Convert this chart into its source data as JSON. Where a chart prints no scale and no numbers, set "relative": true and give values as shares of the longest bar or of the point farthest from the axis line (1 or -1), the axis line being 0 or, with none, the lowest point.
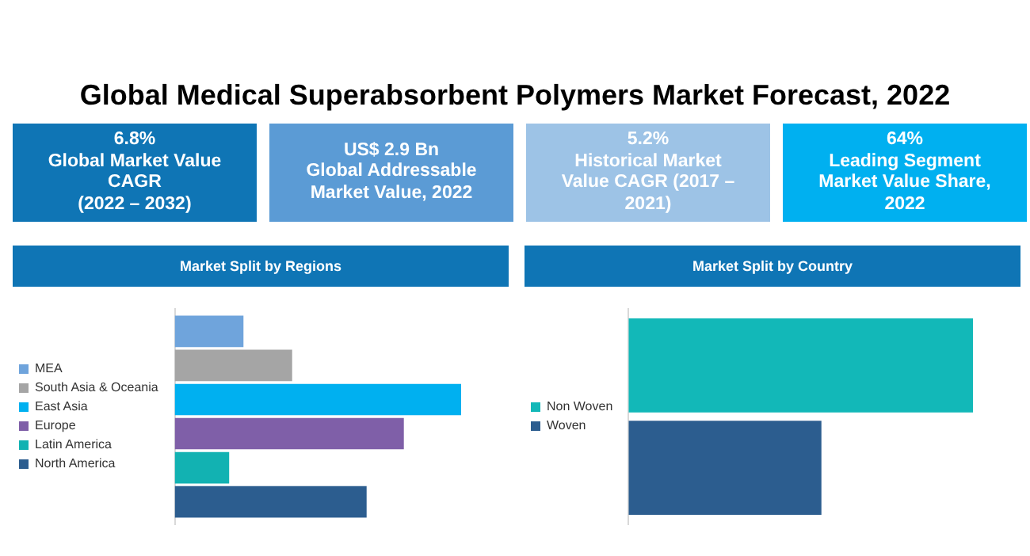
{
  "chart_data": [
    {
      "type": "other",
      "title": "Global Medical Superabsorbent Polymers Market Forecast, 2022",
      "annotations": [
        "6.8%\nGlobal Market Value\nCAGR\n(2022 – 2032)",
        "US$ 2.9 Bn\nGlobal Addressable\nMarket Value, 2022",
        "5.2%\nHistorical Market\nValue CAGR (2017 –\n2021)",
        "64%\nLeading Segment\nMarket Value Share,\n2022"
      ],
      "colors": [
        "#0f75b5",
        "#5b9bd5",
        "#9dc3e6",
        "#00b0f0"
      ]
    },
    {
      "type": "bar",
      "orientation": "horizontal",
      "relative": true,
      "title": "Market Split by Regions",
      "legend": "left",
      "categories": [
        null
      ],
      "series": [
        {
          "name": "MEA",
          "color": "#6fa4dc",
          "values": [
            0.24
          ]
        },
        {
          "name": "South Asia & Oceania",
          "color": "#a5a5a5",
          "values": [
            0.41
          ]
        },
        {
          "name": "East Asia",
          "color": "#00b0f0",
          "values": [
            1
          ]
        },
        {
          "name": "Europe",
          "color": "#7f5fa8",
          "values": [
            0.8
          ]
        },
        {
          "name": "Latin America",
          "color": "#12b2b2",
          "values": [
            0.19
          ]
        },
        {
          "name": "North America",
          "color": "#2c5d8f",
          "values": [
            0.67
          ]
        }
      ]
    },
    {
      "type": "bar",
      "orientation": "horizontal",
      "relative": true,
      "title": "Market Split by Country",
      "legend": "left",
      "categories": [
        null
      ],
      "series": [
        {
          "name": "Non Woven",
          "color": "#12b8b8",
          "values": [
            1
          ]
        },
        {
          "name": "Woven",
          "color": "#2c5d8f",
          "values": [
            0.56
          ]
        }
      ]
    }
  ]
}
